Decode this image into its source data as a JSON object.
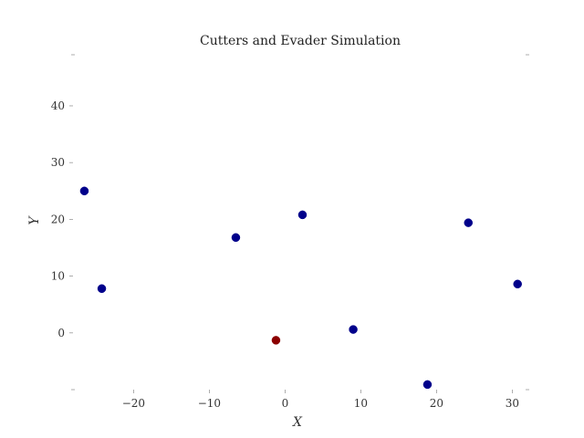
{
  "chart_data": {
    "type": "scatter",
    "title": "Cutters and Evader Simulation",
    "xlabel": "X",
    "ylabel": "Y",
    "xlim": [
      -28,
      32
    ],
    "ylim": [
      -10,
      49
    ],
    "xticks": [
      -20,
      -10,
      0,
      10,
      20,
      30
    ],
    "yticks": [
      0,
      10,
      20,
      30,
      40
    ],
    "xtick_labels": [
      "−20",
      "−10",
      "0",
      "10",
      "20",
      "30"
    ],
    "ytick_labels": [
      "0",
      "10",
      "20",
      "30",
      "40"
    ],
    "grid": false,
    "series": [
      {
        "color": "#00008b",
        "points": [
          {
            "x": -26.5,
            "y": 25.0
          },
          {
            "x": -24.2,
            "y": 7.8
          },
          {
            "x": -6.5,
            "y": 16.8
          },
          {
            "x": 2.3,
            "y": 20.8
          },
          {
            "x": 9.0,
            "y": 0.6
          },
          {
            "x": 18.8,
            "y": -9.1
          },
          {
            "x": 24.2,
            "y": 19.4
          },
          {
            "x": 30.7,
            "y": 8.6
          }
        ]
      },
      {
        "color": "#8b0000",
        "points": [
          {
            "x": -1.2,
            "y": -1.3
          }
        ]
      }
    ]
  }
}
